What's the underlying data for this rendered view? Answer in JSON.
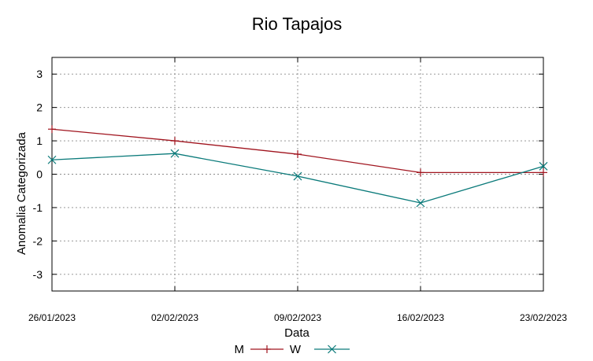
{
  "chart_data": {
    "type": "line",
    "title": "Rio Tapajos",
    "xlabel": "Data",
    "ylabel": "Anomalia Categorizada",
    "categories": [
      "26/01/2023",
      "02/02/2023",
      "09/02/2023",
      "16/02/2023",
      "23/02/2023"
    ],
    "yticks": [
      "-3",
      "-2",
      "-1",
      "0",
      "1",
      "2",
      "3"
    ],
    "ylim": [
      -3.5,
      3.5
    ],
    "grid": true,
    "legend_position": "bottom",
    "series": [
      {
        "name": "M",
        "color": "#a0141e",
        "marker": "plus",
        "values": [
          1.35,
          1.0,
          0.6,
          0.05,
          0.05
        ]
      },
      {
        "name": "W",
        "color": "#0a7a7a",
        "marker": "x",
        "values": [
          0.43,
          0.62,
          -0.06,
          -0.86,
          0.24
        ]
      }
    ]
  }
}
